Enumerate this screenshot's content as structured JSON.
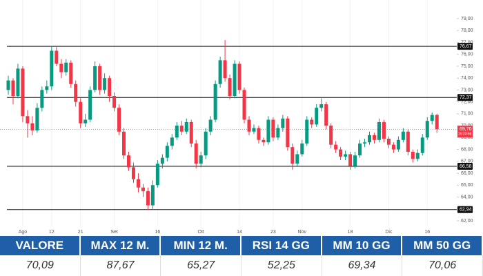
{
  "chart_data": {
    "type": "candlestick",
    "categories": [
      null,
      null,
      null,
      "Ago",
      null,
      null,
      null,
      null,
      null,
      "12",
      null,
      null,
      null,
      null,
      null,
      "21",
      null,
      null,
      null,
      null,
      null,
      null,
      "Set",
      null,
      null,
      null,
      null,
      null,
      null,
      null,
      null,
      "16",
      null,
      null,
      null,
      null,
      null,
      null,
      null,
      null,
      "Ott",
      null,
      null,
      null,
      null,
      null,
      null,
      null,
      "14",
      null,
      null,
      null,
      null,
      null,
      null,
      "23",
      null,
      null,
      null,
      null,
      null,
      "Nov",
      null,
      null,
      null,
      null,
      null,
      null,
      null,
      null,
      null,
      "18",
      null,
      null,
      null,
      null,
      null,
      null,
      null,
      "Dic",
      null,
      null,
      null,
      null,
      null,
      null,
      null,
      "16",
      null,
      null
    ],
    "ohlc": [
      [
        73.0,
        74.2,
        72.6,
        73.8
      ],
      [
        73.8,
        74.0,
        71.8,
        72.5
      ],
      [
        72.5,
        75.2,
        72.3,
        74.8
      ],
      [
        74.8,
        75.0,
        70.3,
        70.8
      ],
      [
        70.8,
        71.3,
        69.0,
        70.2
      ],
      [
        70.2,
        70.8,
        69.2,
        69.6
      ],
      [
        69.6,
        71.9,
        69.4,
        71.5
      ],
      [
        71.5,
        73.3,
        71.2,
        73.0
      ],
      [
        73.0,
        73.8,
        72.7,
        73.3
      ],
      [
        73.3,
        76.7,
        73.0,
        76.3
      ],
      [
        76.3,
        76.6,
        75.0,
        75.2
      ],
      [
        75.2,
        75.6,
        74.0,
        74.5
      ],
      [
        74.5,
        75.6,
        74.2,
        75.3
      ],
      [
        75.3,
        75.5,
        73.2,
        73.5
      ],
      [
        73.5,
        73.8,
        71.6,
        72.0
      ],
      [
        72.0,
        72.3,
        69.8,
        70.2
      ],
      [
        70.2,
        71.0,
        69.9,
        70.5
      ],
      [
        70.5,
        73.3,
        70.3,
        73.0
      ],
      [
        73.0,
        75.4,
        72.8,
        75.0
      ],
      [
        75.0,
        75.2,
        72.6,
        73.0
      ],
      [
        73.0,
        74.4,
        72.7,
        74.0
      ],
      [
        74.0,
        74.2,
        72.0,
        72.5
      ],
      [
        72.5,
        72.8,
        71.2,
        71.5
      ],
      [
        71.5,
        71.8,
        69.2,
        69.5
      ],
      [
        69.5,
        69.8,
        67.2,
        67.5
      ],
      [
        67.5,
        67.8,
        66.2,
        66.5
      ],
      [
        66.5,
        66.9,
        65.2,
        65.5
      ],
      [
        65.5,
        66.0,
        64.4,
        64.8
      ],
      [
        64.8,
        65.1,
        64.0,
        64.5
      ],
      [
        64.5,
        64.8,
        62.9,
        63.3
      ],
      [
        63.3,
        65.4,
        63.0,
        65.0
      ],
      [
        65.0,
        67.1,
        64.8,
        66.8
      ],
      [
        66.8,
        67.6,
        66.4,
        67.3
      ],
      [
        67.3,
        68.6,
        67.0,
        68.3
      ],
      [
        68.3,
        69.3,
        68.0,
        69.0
      ],
      [
        69.0,
        70.3,
        68.8,
        70.0
      ],
      [
        70.0,
        70.4,
        69.2,
        69.5
      ],
      [
        69.5,
        70.6,
        69.3,
        70.3
      ],
      [
        70.3,
        70.5,
        68.2,
        68.5
      ],
      [
        68.5,
        68.8,
        66.4,
        66.8
      ],
      [
        66.8,
        67.8,
        66.5,
        67.5
      ],
      [
        67.5,
        69.8,
        67.2,
        69.5
      ],
      [
        69.5,
        70.8,
        69.2,
        70.5
      ],
      [
        70.5,
        73.8,
        70.3,
        73.5
      ],
      [
        73.5,
        75.8,
        73.2,
        75.5
      ],
      [
        75.5,
        77.2,
        73.7,
        74.0
      ],
      [
        74.0,
        74.3,
        72.2,
        72.5
      ],
      [
        72.5,
        75.5,
        72.3,
        75.2
      ],
      [
        75.2,
        75.4,
        72.7,
        73.0
      ],
      [
        73.0,
        73.2,
        70.2,
        70.5
      ],
      [
        70.5,
        70.8,
        69.2,
        69.5
      ],
      [
        69.5,
        70.1,
        69.3,
        69.8
      ],
      [
        69.8,
        70.0,
        68.5,
        68.8
      ],
      [
        68.8,
        69.0,
        68.3,
        68.6
      ],
      [
        68.6,
        70.8,
        68.4,
        70.5
      ],
      [
        70.5,
        70.7,
        68.7,
        69.0
      ],
      [
        69.0,
        70.1,
        68.8,
        69.8
      ],
      [
        69.8,
        70.9,
        69.5,
        70.6
      ],
      [
        70.6,
        70.8,
        67.9,
        68.2
      ],
      [
        68.2,
        68.5,
        66.3,
        66.8
      ],
      [
        66.8,
        67.9,
        66.6,
        67.6
      ],
      [
        67.6,
        68.8,
        67.4,
        68.5
      ],
      [
        68.5,
        70.8,
        68.3,
        70.5
      ],
      [
        70.5,
        70.7,
        69.8,
        70.1
      ],
      [
        70.1,
        71.8,
        69.9,
        71.5
      ],
      [
        71.5,
        72.3,
        71.2,
        71.8
      ],
      [
        71.8,
        72.0,
        69.7,
        70.0
      ],
      [
        70.0,
        70.2,
        68.1,
        68.4
      ],
      [
        68.4,
        68.7,
        67.7,
        68.0
      ],
      [
        68.0,
        68.2,
        67.1,
        67.4
      ],
      [
        67.4,
        67.9,
        67.1,
        67.6
      ],
      [
        67.6,
        67.8,
        66.3,
        66.6
      ],
      [
        66.6,
        67.8,
        66.4,
        67.5
      ],
      [
        67.5,
        68.8,
        67.3,
        68.5
      ],
      [
        68.5,
        68.9,
        68.2,
        68.6
      ],
      [
        68.6,
        69.5,
        68.4,
        69.2
      ],
      [
        69.2,
        69.4,
        68.5,
        68.8
      ],
      [
        68.8,
        70.6,
        68.6,
        70.3
      ],
      [
        70.3,
        70.5,
        68.6,
        68.9
      ],
      [
        68.9,
        69.1,
        68.1,
        68.4
      ],
      [
        68.4,
        68.6,
        67.7,
        68.0
      ],
      [
        68.0,
        69.1,
        67.8,
        68.8
      ],
      [
        68.8,
        69.8,
        68.6,
        69.5
      ],
      [
        69.5,
        69.7,
        67.5,
        67.8
      ],
      [
        67.8,
        68.0,
        66.9,
        67.2
      ],
      [
        67.2,
        68.0,
        67.0,
        67.7
      ],
      [
        67.7,
        69.3,
        67.5,
        69.0
      ],
      [
        69.0,
        70.7,
        68.8,
        70.4
      ],
      [
        70.4,
        71.1,
        70.1,
        70.9
      ],
      [
        70.9,
        71.0,
        69.4,
        69.7
      ]
    ],
    "up_color": "#089981",
    "down_color": "#f23645",
    "ylim": [
      62,
      79
    ],
    "yticks": [
      {
        "value": 62,
        "label": "62,00"
      },
      {
        "value": 63,
        "label": "63,00"
      },
      {
        "value": 64,
        "label": "64,00"
      },
      {
        "value": 65,
        "label": "65,00"
      },
      {
        "value": 66,
        "label": "66,00"
      },
      {
        "value": 67,
        "label": "67,00"
      },
      {
        "value": 68,
        "label": "68,00"
      },
      {
        "value": 69,
        "label": "69,00"
      },
      {
        "value": 70,
        "label": "70,00"
      },
      {
        "value": 71,
        "label": "71,00"
      },
      {
        "value": 72,
        "label": "72,00"
      },
      {
        "value": 73,
        "label": "73,00"
      },
      {
        "value": 74,
        "label": "74,00"
      },
      {
        "value": 75,
        "label": "75,00"
      },
      {
        "value": 76,
        "label": "76,00"
      },
      {
        "value": 77,
        "label": "77,00"
      },
      {
        "value": 78,
        "label": "78,00"
      },
      {
        "value": 79,
        "label": "79,00"
      }
    ],
    "levels": [
      {
        "value": 76.67,
        "label": "76,67"
      },
      {
        "value": 72.37,
        "label": "72,37"
      },
      {
        "value": 66.58,
        "label": "66,58"
      },
      {
        "value": 62.94,
        "label": "62,94"
      }
    ],
    "last_price": {
      "value": 69.7,
      "label": "69,70",
      "time": "16:23:56"
    }
  },
  "table": {
    "headers": [
      "VALORE",
      "MAX 12 M.",
      "MIN 12 M.",
      "RSI 14 GG",
      "MM 10 GG",
      "MM 50 GG"
    ],
    "values": [
      "70,09",
      "87,67",
      "65,27",
      "52,25",
      "69,34",
      "70,06"
    ]
  }
}
